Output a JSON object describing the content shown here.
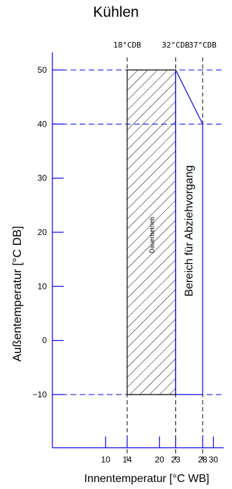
{
  "chart_data": {
    "type": "area",
    "title": "Kühlen",
    "xlabel": "Innentemperatur [°C WB]",
    "ylabel": "Außentemperatur [°C DB]",
    "xlim": [
      4,
      32
    ],
    "ylim": [
      -18,
      58
    ],
    "x_ticks": [
      10,
      14,
      20,
      23,
      28,
      30
    ],
    "y_ticks": [
      50,
      40,
      30,
      20,
      10,
      0,
      -10
    ],
    "top_markers": [
      {
        "x": 14,
        "label": "18°CDB"
      },
      {
        "x": 23,
        "label": "32°CDB"
      },
      {
        "x": 28,
        "label": "37°CDB"
      }
    ],
    "regions": [
      {
        "name": "Dauerbetrieb",
        "polygon": [
          [
            14,
            -10
          ],
          [
            23,
            -10
          ],
          [
            23,
            50
          ],
          [
            14,
            50
          ]
        ],
        "hatched": true
      },
      {
        "name": "Bereich für Abziehvorgang",
        "polygon": [
          [
            23,
            -10
          ],
          [
            28,
            -10
          ],
          [
            28,
            40
          ],
          [
            23,
            50
          ]
        ],
        "hatched": false
      }
    ],
    "hlines": [
      50,
      40,
      -10
    ],
    "colors": {
      "axis": "#0000ee",
      "guide": "#0000ee",
      "marker_line": "#000000"
    }
  }
}
